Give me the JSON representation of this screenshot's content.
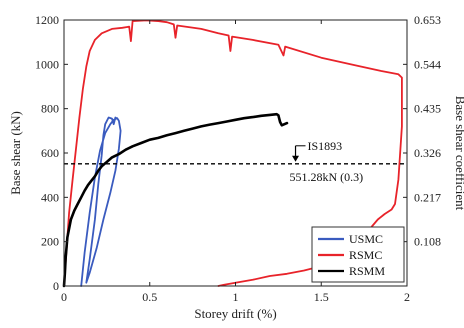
{
  "chart_data": {
    "type": "line",
    "xlabel": "Storey drift (%)",
    "ylabel": "Base shear (kN)",
    "y2label": "Base shear coefficient",
    "xlim": [
      0,
      2
    ],
    "ylim": [
      0,
      1200
    ],
    "xticks": [
      "0",
      "0.5",
      "1",
      "1.5",
      "2"
    ],
    "xtick_values": [
      0,
      0.5,
      1,
      1.5,
      2
    ],
    "yticks": [
      "0",
      "200",
      "400",
      "600",
      "800",
      "1000",
      "1200"
    ],
    "ytick_values": [
      0,
      200,
      400,
      600,
      800,
      1000,
      1200
    ],
    "y2ticks": [
      "0.108",
      "0.217",
      "0.326",
      "0.435",
      "0.544",
      "0.653"
    ],
    "y2tick_values": [
      200,
      400,
      600,
      800,
      1000,
      1200
    ],
    "grid": false,
    "legend_position": "bottom-right",
    "series": [
      {
        "name": "USMC",
        "color": "#3a5bbf",
        "points": [
          [
            0.1,
            0
          ],
          [
            0.12,
            150
          ],
          [
            0.15,
            330
          ],
          [
            0.18,
            490
          ],
          [
            0.21,
            610
          ],
          [
            0.24,
            690
          ],
          [
            0.27,
            730
          ],
          [
            0.29,
            750
          ],
          [
            0.31,
            757
          ],
          [
            0.32,
            745
          ],
          [
            0.33,
            700
          ],
          [
            0.32,
            620
          ],
          [
            0.3,
            520
          ],
          [
            0.27,
            420
          ],
          [
            0.23,
            300
          ],
          [
            0.19,
            170
          ],
          [
            0.15,
            60
          ],
          [
            0.13,
            15
          ],
          [
            0.15,
            120
          ],
          [
            0.18,
            300
          ],
          [
            0.2,
            460
          ],
          [
            0.22,
            590
          ],
          [
            0.23,
            680
          ],
          [
            0.24,
            730
          ],
          [
            0.26,
            760
          ],
          [
            0.28,
            755
          ],
          [
            0.29,
            730
          ],
          [
            0.3,
            760
          ],
          [
            0.31,
            755
          ]
        ]
      },
      {
        "name": "RSMC",
        "color": "#e8232a",
        "points": [
          [
            0,
            0
          ],
          [
            0.02,
            220
          ],
          [
            0.03,
            330
          ],
          [
            0.05,
            480
          ],
          [
            0.07,
            620
          ],
          [
            0.09,
            760
          ],
          [
            0.11,
            890
          ],
          [
            0.13,
            990
          ],
          [
            0.15,
            1060
          ],
          [
            0.18,
            1110
          ],
          [
            0.22,
            1140
          ],
          [
            0.28,
            1160
          ],
          [
            0.34,
            1165
          ],
          [
            0.38,
            1170
          ],
          [
            0.39,
            1105
          ],
          [
            0.4,
            1195
          ],
          [
            0.48,
            1198
          ],
          [
            0.55,
            1195
          ],
          [
            0.6,
            1190
          ],
          [
            0.64,
            1180
          ],
          [
            0.65,
            1120
          ],
          [
            0.66,
            1175
          ],
          [
            0.8,
            1160
          ],
          [
            0.9,
            1140
          ],
          [
            0.96,
            1130
          ],
          [
            0.97,
            1060
          ],
          [
            0.98,
            1125
          ],
          [
            1.1,
            1110
          ],
          [
            1.25,
            1088
          ],
          [
            1.28,
            1040
          ],
          [
            1.29,
            1080
          ],
          [
            1.5,
            1030
          ],
          [
            1.7,
            995
          ],
          [
            1.85,
            970
          ],
          [
            1.95,
            955
          ],
          [
            1.97,
            940
          ],
          [
            1.97,
            720
          ],
          [
            1.95,
            480
          ],
          [
            1.93,
            370
          ],
          [
            1.91,
            345
          ],
          [
            1.87,
            325
          ],
          [
            1.83,
            300
          ],
          [
            1.78,
            255
          ],
          [
            1.72,
            200
          ],
          [
            1.65,
            155
          ],
          [
            1.58,
            115
          ],
          [
            1.5,
            90
          ],
          [
            1.4,
            70
          ],
          [
            1.3,
            55
          ],
          [
            1.2,
            45
          ],
          [
            1.1,
            28
          ],
          [
            1.0,
            15
          ],
          [
            0.93,
            5
          ],
          [
            0.9,
            0
          ]
        ]
      },
      {
        "name": "RSMM",
        "color": "#000000",
        "points": [
          [
            0,
            0
          ],
          [
            0.005,
            60
          ],
          [
            0.01,
            130
          ],
          [
            0.02,
            220
          ],
          [
            0.04,
            300
          ],
          [
            0.06,
            340
          ],
          [
            0.08,
            370
          ],
          [
            0.1,
            400
          ],
          [
            0.12,
            430
          ],
          [
            0.14,
            455
          ],
          [
            0.16,
            475
          ],
          [
            0.18,
            495
          ],
          [
            0.2,
            520
          ],
          [
            0.22,
            540
          ],
          [
            0.25,
            560
          ],
          [
            0.28,
            580
          ],
          [
            0.32,
            595
          ],
          [
            0.36,
            615
          ],
          [
            0.4,
            630
          ],
          [
            0.45,
            645
          ],
          [
            0.5,
            660
          ],
          [
            0.55,
            668
          ],
          [
            0.6,
            680
          ],
          [
            0.65,
            690
          ],
          [
            0.7,
            700
          ],
          [
            0.75,
            710
          ],
          [
            0.8,
            720
          ],
          [
            0.85,
            728
          ],
          [
            0.9,
            735
          ],
          [
            0.95,
            742
          ],
          [
            1.0,
            750
          ],
          [
            1.05,
            757
          ],
          [
            1.1,
            762
          ],
          [
            1.15,
            768
          ],
          [
            1.2,
            772
          ],
          [
            1.24,
            775
          ],
          [
            1.25,
            770
          ],
          [
            1.26,
            740
          ],
          [
            1.27,
            725
          ],
          [
            1.28,
            728
          ],
          [
            1.3,
            735
          ]
        ]
      }
    ],
    "reference_line": {
      "label": "IS1893",
      "value_label": "551.28kN (0.3)",
      "y": 551.28,
      "style": "dashed",
      "color": "#000000",
      "arrow_at_x": 1.35
    }
  }
}
